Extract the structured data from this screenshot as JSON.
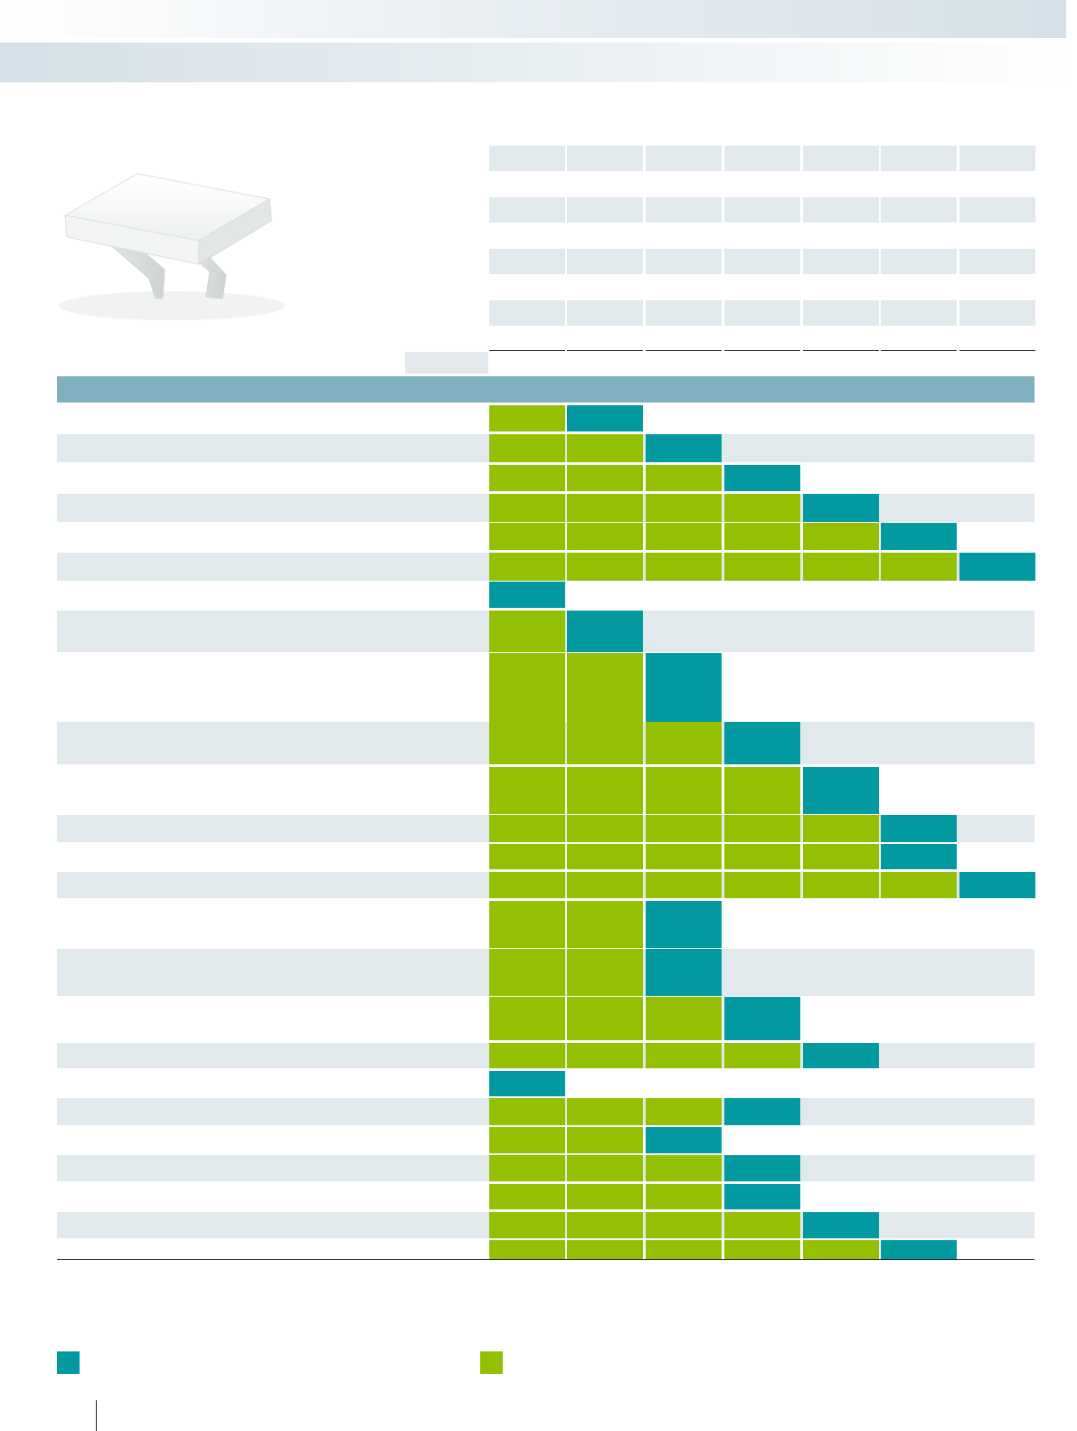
{
  "colors": {
    "teal": "#029aa0",
    "green": "#94c004",
    "row_light": "#e1e9ed",
    "section_bar": "#80b0bf"
  },
  "legend": {
    "teal_label": "",
    "green_label": ""
  },
  "icons": {
    "product": "marker-clip-illustration"
  },
  "matrix": {
    "columns": 7,
    "rows": [
      {
        "shaded": false,
        "cells": [
          "green",
          "teal",
          "",
          "",
          "",
          "",
          ""
        ]
      },
      {
        "shaded": true,
        "cells": [
          "green",
          "green",
          "teal",
          "",
          "",
          "",
          ""
        ]
      },
      {
        "shaded": false,
        "cells": [
          "green",
          "green",
          "green",
          "teal",
          "",
          "",
          ""
        ]
      },
      {
        "shaded": true,
        "cells": [
          "green",
          "green",
          "green",
          "green",
          "teal",
          "",
          ""
        ]
      },
      {
        "shaded": false,
        "cells": [
          "green",
          "green",
          "green",
          "green",
          "green",
          "teal",
          ""
        ]
      },
      {
        "shaded": true,
        "cells": [
          "green",
          "green",
          "green",
          "green",
          "green",
          "green",
          "teal"
        ]
      },
      {
        "shaded": false,
        "cells": [
          "teal",
          "",
          "",
          "",
          "",
          "",
          ""
        ]
      },
      {
        "shaded": true,
        "cells": [
          "green",
          "teal",
          "",
          "",
          "",
          "",
          ""
        ]
      },
      {
        "shaded": false,
        "cells": [
          "green",
          "green",
          "teal",
          "",
          "",
          "",
          ""
        ]
      },
      {
        "shaded": true,
        "cells": [
          "green",
          "green",
          "green",
          "teal",
          "",
          "",
          ""
        ]
      },
      {
        "shaded": false,
        "cells": [
          "green",
          "green",
          "green",
          "green",
          "teal",
          "",
          ""
        ]
      },
      {
        "shaded": true,
        "cells": [
          "green",
          "green",
          "green",
          "green",
          "green",
          "teal",
          ""
        ]
      },
      {
        "shaded": false,
        "cells": [
          "green",
          "green",
          "green",
          "green",
          "green",
          "teal",
          ""
        ]
      },
      {
        "shaded": true,
        "cells": [
          "green",
          "green",
          "green",
          "green",
          "green",
          "green",
          "teal"
        ]
      },
      {
        "shaded": false,
        "cells": [
          "green",
          "green",
          "teal",
          "",
          "",
          "",
          ""
        ]
      },
      {
        "shaded": true,
        "cells": [
          "green",
          "green",
          "teal",
          "",
          "",
          "",
          ""
        ]
      },
      {
        "shaded": false,
        "cells": [
          "green",
          "green",
          "green",
          "teal",
          "",
          "",
          ""
        ]
      },
      {
        "shaded": true,
        "cells": [
          "green",
          "green",
          "green",
          "green",
          "teal",
          "",
          ""
        ]
      },
      {
        "shaded": false,
        "cells": [
          "teal",
          "",
          "",
          "",
          "",
          "",
          ""
        ]
      },
      {
        "shaded": true,
        "cells": [
          "green",
          "green",
          "green",
          "teal",
          "",
          "",
          ""
        ]
      },
      {
        "shaded": false,
        "cells": [
          "green",
          "green",
          "teal",
          "",
          "",
          "",
          ""
        ]
      },
      {
        "shaded": true,
        "cells": [
          "green",
          "green",
          "green",
          "teal",
          "",
          "",
          ""
        ]
      },
      {
        "shaded": false,
        "cells": [
          "green",
          "green",
          "green",
          "teal",
          "",
          "",
          ""
        ]
      },
      {
        "shaded": true,
        "cells": [
          "green",
          "green",
          "green",
          "green",
          "teal",
          "",
          ""
        ]
      },
      {
        "shaded": false,
        "cells": [
          "green",
          "green",
          "green",
          "green",
          "green",
          "teal",
          ""
        ]
      }
    ]
  }
}
